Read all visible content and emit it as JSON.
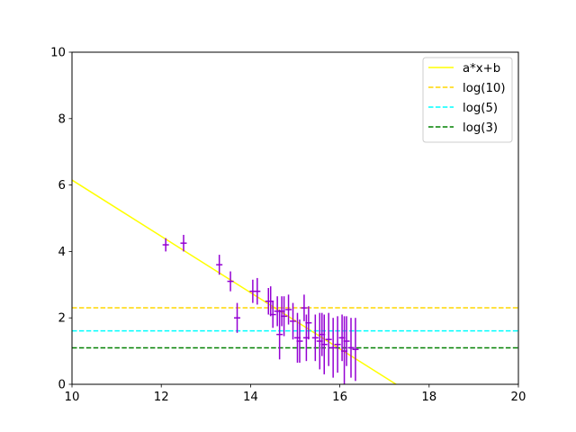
{
  "chart_data": {
    "type": "scatter",
    "title": "",
    "xlabel": "",
    "ylabel": "",
    "xlim": [
      10,
      20
    ],
    "ylim": [
      0,
      10
    ],
    "x_ticks": [
      "10",
      "12",
      "14",
      "16",
      "18",
      "20"
    ],
    "y_ticks": [
      "0",
      "2",
      "4",
      "6",
      "8",
      "10"
    ],
    "grid": false,
    "legend_position": "top-right",
    "series": [
      {
        "name": "a*x+b",
        "kind": "line",
        "color": "#ffff00",
        "style": "solid",
        "points": [
          [
            10,
            6.15
          ],
          [
            17.26,
            0
          ]
        ]
      },
      {
        "name": "log(10)",
        "kind": "hline",
        "color": "#ffd700",
        "style": "dashed",
        "y": 2.303
      },
      {
        "name": "log(5)",
        "kind": "hline",
        "color": "#00ffff",
        "style": "dashed",
        "y": 1.609
      },
      {
        "name": "log(3)",
        "kind": "hline",
        "color": "#008000",
        "style": "dashed",
        "y": 1.099
      },
      {
        "kind": "errorbar",
        "color": "#9400d3",
        "points": [
          {
            "x": 12.1,
            "y": 4.2,
            "err": 0.2
          },
          {
            "x": 12.5,
            "y": 4.25,
            "err": 0.25
          },
          {
            "x": 13.3,
            "y": 3.6,
            "err": 0.3
          },
          {
            "x": 13.55,
            "y": 3.1,
            "err": 0.3
          },
          {
            "x": 13.7,
            "y": 2.0,
            "err": 0.45
          },
          {
            "x": 14.05,
            "y": 2.8,
            "err": 0.35
          },
          {
            "x": 14.15,
            "y": 2.8,
            "err": 0.4
          },
          {
            "x": 14.4,
            "y": 2.5,
            "err": 0.4
          },
          {
            "x": 14.45,
            "y": 2.5,
            "err": 0.45
          },
          {
            "x": 14.5,
            "y": 2.1,
            "err": 0.4
          },
          {
            "x": 14.6,
            "y": 2.2,
            "err": 0.45
          },
          {
            "x": 14.65,
            "y": 1.5,
            "err": 0.75
          },
          {
            "x": 14.7,
            "y": 2.2,
            "err": 0.45
          },
          {
            "x": 14.75,
            "y": 2.05,
            "err": 0.6
          },
          {
            "x": 14.85,
            "y": 2.25,
            "err": 0.45
          },
          {
            "x": 14.95,
            "y": 1.9,
            "err": 0.55
          },
          {
            "x": 15.05,
            "y": 1.4,
            "err": 0.75
          },
          {
            "x": 15.1,
            "y": 1.3,
            "err": 0.65
          },
          {
            "x": 15.2,
            "y": 2.3,
            "err": 0.4
          },
          {
            "x": 15.25,
            "y": 1.4,
            "err": 0.7
          },
          {
            "x": 15.3,
            "y": 1.85,
            "err": 0.5
          },
          {
            "x": 15.45,
            "y": 1.4,
            "err": 0.7
          },
          {
            "x": 15.55,
            "y": 1.3,
            "err": 0.85
          },
          {
            "x": 15.6,
            "y": 1.5,
            "err": 0.65
          },
          {
            "x": 15.65,
            "y": 1.2,
            "err": 0.9
          },
          {
            "x": 15.75,
            "y": 1.35,
            "err": 0.8
          },
          {
            "x": 15.85,
            "y": 1.1,
            "err": 0.9
          },
          {
            "x": 15.95,
            "y": 1.2,
            "err": 0.85
          },
          {
            "x": 16.05,
            "y": 1.4,
            "err": 0.7
          },
          {
            "x": 16.1,
            "y": 1.0,
            "err": 1.05
          },
          {
            "x": 16.15,
            "y": 1.3,
            "err": 0.75
          },
          {
            "x": 16.25,
            "y": 1.1,
            "err": 0.9
          },
          {
            "x": 16.35,
            "y": 1.05,
            "err": 0.95
          }
        ]
      }
    ]
  }
}
